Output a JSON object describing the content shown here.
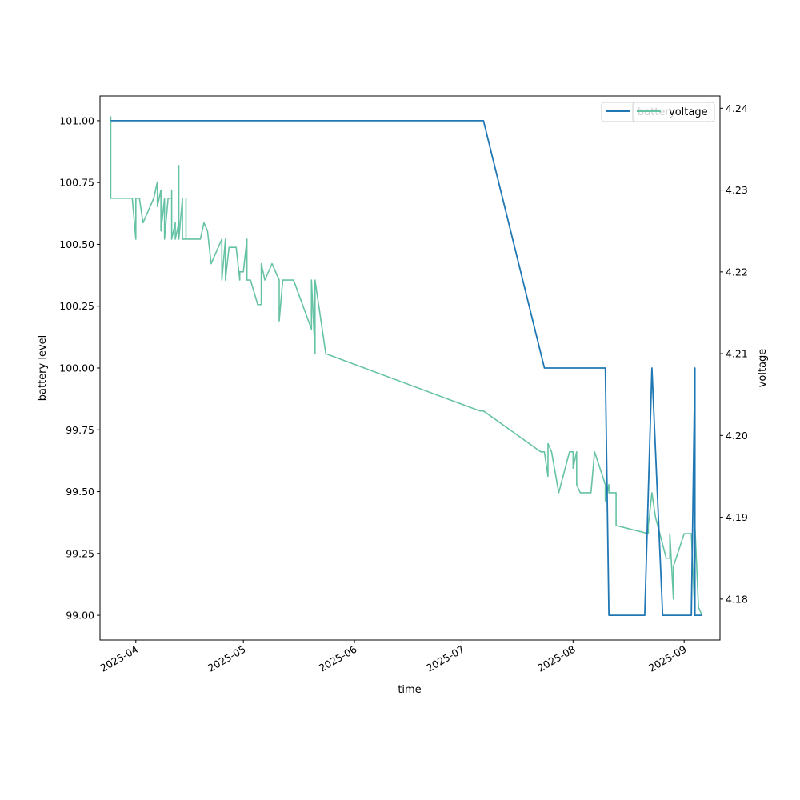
{
  "chart_data": {
    "type": "line",
    "xlabel": "time",
    "ylabel_left": "battery level",
    "ylabel_right": "voltage",
    "x_tick_labels": [
      "2025-04",
      "2025-05",
      "2025-06",
      "2025-07",
      "2025-08",
      "2025-09"
    ],
    "x_ticks": [
      "2025-04-01",
      "2025-05-01",
      "2025-06-01",
      "2025-07-01",
      "2025-08-01",
      "2025-09-01"
    ],
    "xlim": [
      "2025-03-22",
      "2025-09-11"
    ],
    "ylim_left": [
      98.9,
      101.1
    ],
    "y_ticks_left": [
      "99.00",
      "99.25",
      "99.50",
      "99.75",
      "100.00",
      "100.25",
      "100.50",
      "100.75",
      "101.00"
    ],
    "ylim_right": [
      4.175,
      4.2415
    ],
    "y_ticks_right": [
      "4.18",
      "4.19",
      "4.20",
      "4.21",
      "4.22",
      "4.23",
      "4.24"
    ],
    "legend_placement": "top-right",
    "colors": {
      "battery": "#1f77b4",
      "voltage": "#66c2a5"
    },
    "series": [
      {
        "name": "battery",
        "axis": "left",
        "points": [
          [
            "2025-03-25",
            101.0
          ],
          [
            "2025-07-07",
            101.0
          ],
          [
            "2025-07-24",
            100.0
          ],
          [
            "2025-08-10",
            100.0
          ],
          [
            "2025-08-11",
            99.0
          ],
          [
            "2025-08-21",
            99.0
          ],
          [
            "2025-08-23",
            100.0
          ],
          [
            "2025-08-26",
            99.0
          ],
          [
            "2025-09-03",
            99.0
          ],
          [
            "2025-09-04",
            100.0
          ],
          [
            "2025-09-04",
            99.0
          ],
          [
            "2025-09-06",
            99.0
          ]
        ]
      },
      {
        "name": "voltage",
        "axis": "right",
        "points": [
          [
            "2025-03-25",
            4.239
          ],
          [
            "2025-03-25",
            4.229
          ],
          [
            "2025-03-31",
            4.229
          ],
          [
            "2025-04-01",
            4.224
          ],
          [
            "2025-04-01",
            4.229
          ],
          [
            "2025-04-02",
            4.229
          ],
          [
            "2025-04-03",
            4.226
          ],
          [
            "2025-04-06",
            4.229
          ],
          [
            "2025-04-07",
            4.231
          ],
          [
            "2025-04-07",
            4.228
          ],
          [
            "2025-04-08",
            4.23
          ],
          [
            "2025-04-08",
            4.225
          ],
          [
            "2025-04-09",
            4.229
          ],
          [
            "2025-04-09",
            4.224
          ],
          [
            "2025-04-10",
            4.229
          ],
          [
            "2025-04-11",
            4.229
          ],
          [
            "2025-04-11",
            4.23
          ],
          [
            "2025-04-11",
            4.224
          ],
          [
            "2025-04-12",
            4.226
          ],
          [
            "2025-04-12",
            4.224
          ],
          [
            "2025-04-13",
            4.226
          ],
          [
            "2025-04-13",
            4.233
          ],
          [
            "2025-04-13",
            4.224
          ],
          [
            "2025-04-14",
            4.229
          ],
          [
            "2025-04-14",
            4.224
          ],
          [
            "2025-04-15",
            4.224
          ],
          [
            "2025-04-15",
            4.229
          ],
          [
            "2025-04-15",
            4.224
          ],
          [
            "2025-04-19",
            4.224
          ],
          [
            "2025-04-20",
            4.226
          ],
          [
            "2025-04-21",
            4.225
          ],
          [
            "2025-04-22",
            4.221
          ],
          [
            "2025-04-24",
            4.223
          ],
          [
            "2025-04-25",
            4.224
          ],
          [
            "2025-04-25",
            4.219
          ],
          [
            "2025-04-26",
            4.224
          ],
          [
            "2025-04-26",
            4.219
          ],
          [
            "2025-04-27",
            4.223
          ],
          [
            "2025-04-29",
            4.223
          ],
          [
            "2025-04-30",
            4.219
          ],
          [
            "2025-04-30",
            4.22
          ],
          [
            "2025-05-01",
            4.22
          ],
          [
            "2025-05-02",
            4.224
          ],
          [
            "2025-05-02",
            4.219
          ],
          [
            "2025-05-03",
            4.219
          ],
          [
            "2025-05-05",
            4.216
          ],
          [
            "2025-05-06",
            4.216
          ],
          [
            "2025-05-06",
            4.221
          ],
          [
            "2025-05-07",
            4.219
          ],
          [
            "2025-05-08",
            4.22
          ],
          [
            "2025-05-09",
            4.221
          ],
          [
            "2025-05-11",
            4.219
          ],
          [
            "2025-05-11",
            4.214
          ],
          [
            "2025-05-12",
            4.219
          ],
          [
            "2025-05-15",
            4.219
          ],
          [
            "2025-05-20",
            4.213
          ],
          [
            "2025-05-20",
            4.219
          ],
          [
            "2025-05-21",
            4.21
          ],
          [
            "2025-05-21",
            4.219
          ],
          [
            "2025-05-24",
            4.21
          ],
          [
            "2025-07-06",
            4.203
          ],
          [
            "2025-07-07",
            4.203
          ],
          [
            "2025-07-23",
            4.198
          ],
          [
            "2025-07-24",
            4.198
          ],
          [
            "2025-07-25",
            4.195
          ],
          [
            "2025-07-25",
            4.199
          ],
          [
            "2025-07-26",
            4.198
          ],
          [
            "2025-07-28",
            4.193
          ],
          [
            "2025-07-31",
            4.198
          ],
          [
            "2025-08-01",
            4.198
          ],
          [
            "2025-08-01",
            4.196
          ],
          [
            "2025-08-02",
            4.198
          ],
          [
            "2025-08-02",
            4.194
          ],
          [
            "2025-08-03",
            4.193
          ],
          [
            "2025-08-06",
            4.193
          ],
          [
            "2025-08-07",
            4.198
          ],
          [
            "2025-08-10",
            4.194
          ],
          [
            "2025-08-10",
            4.192
          ],
          [
            "2025-08-11",
            4.194
          ],
          [
            "2025-08-11",
            4.193
          ],
          [
            "2025-08-13",
            4.193
          ],
          [
            "2025-08-13",
            4.189
          ],
          [
            "2025-08-22",
            4.188
          ],
          [
            "2025-08-22",
            4.189
          ],
          [
            "2025-08-23",
            4.193
          ],
          [
            "2025-08-24",
            4.19
          ],
          [
            "2025-08-27",
            4.185
          ],
          [
            "2025-08-28",
            4.185
          ],
          [
            "2025-08-28",
            4.188
          ],
          [
            "2025-08-29",
            4.18
          ],
          [
            "2025-08-29",
            4.184
          ],
          [
            "2025-09-01",
            4.188
          ],
          [
            "2025-09-03",
            4.188
          ],
          [
            "2025-09-04",
            4.178
          ],
          [
            "2025-09-04",
            4.189
          ],
          [
            "2025-09-05",
            4.179
          ],
          [
            "2025-09-06",
            4.178
          ]
        ]
      }
    ]
  }
}
